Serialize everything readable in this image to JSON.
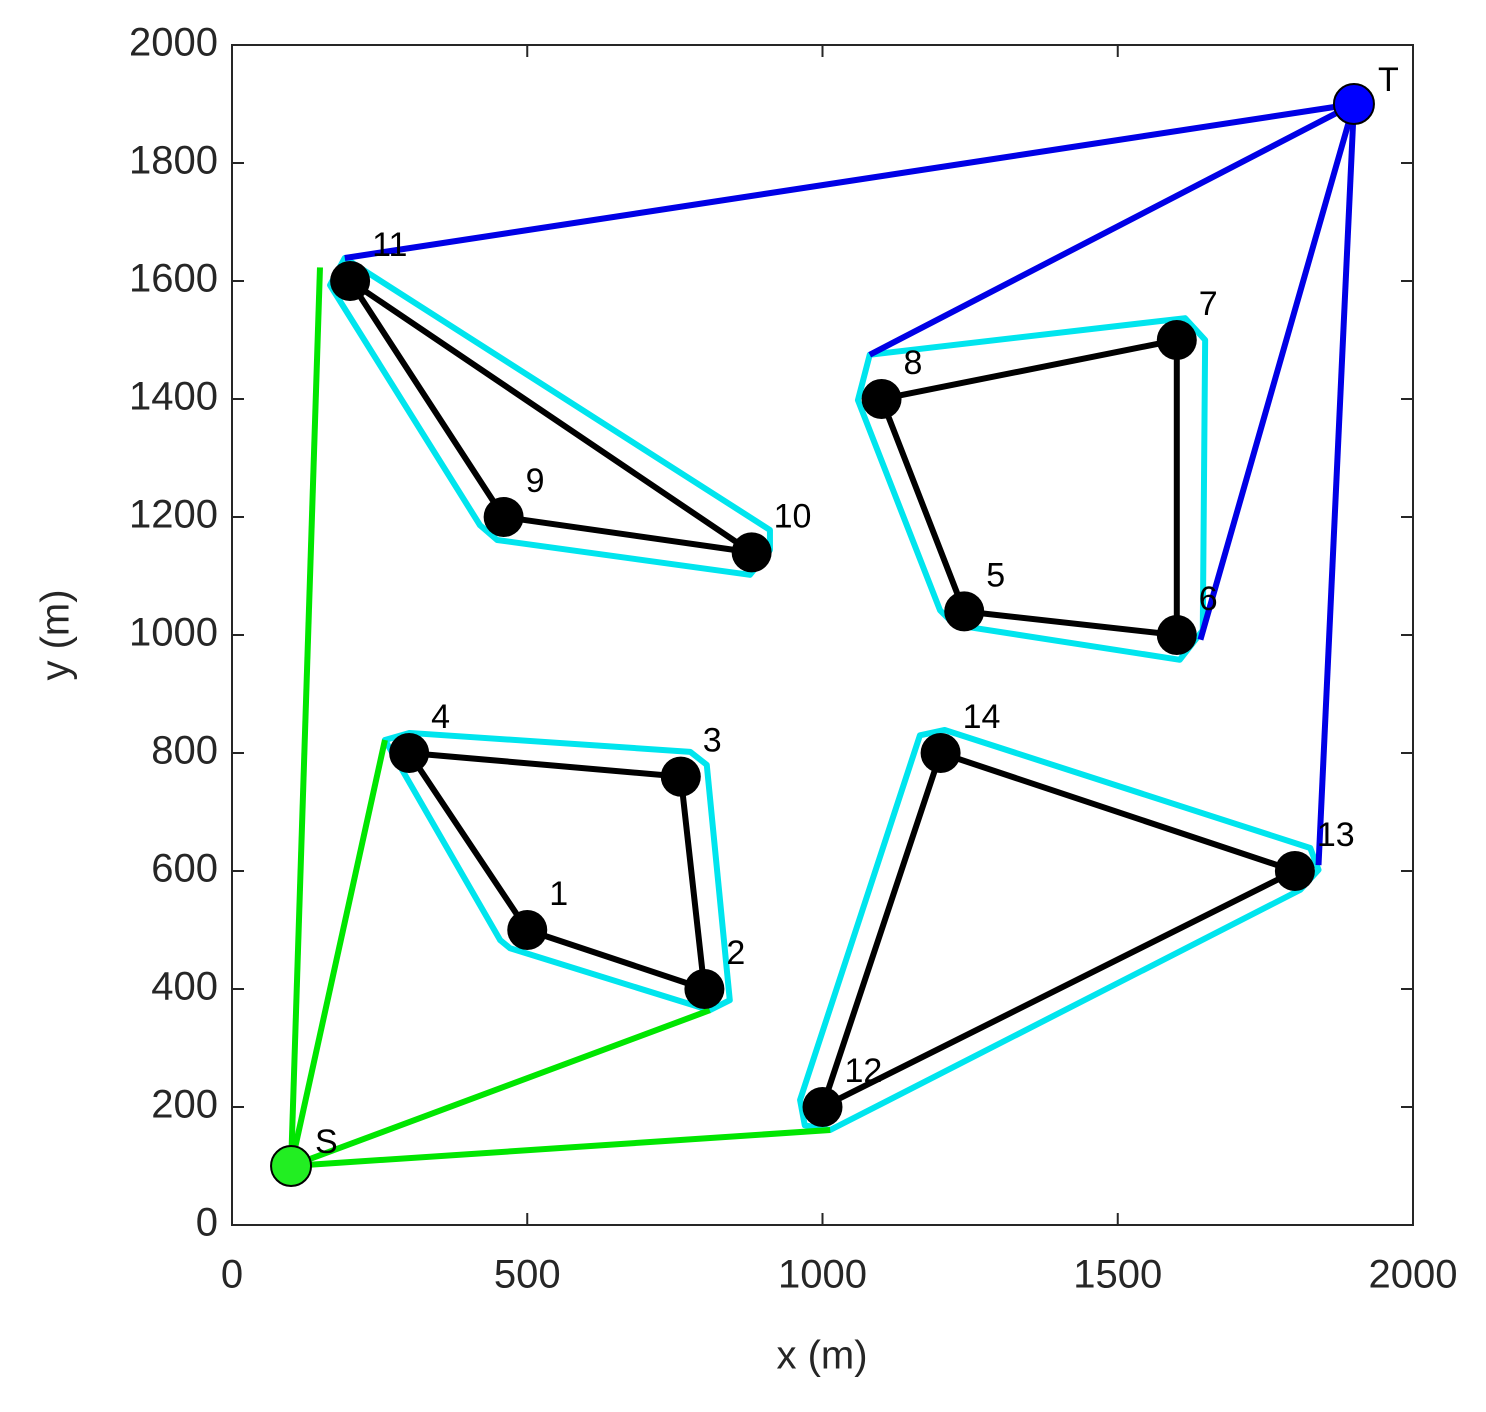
{
  "chart_data": {
    "type": "network",
    "x_label": "x (m)",
    "y_label": "y (m)",
    "xlim": [
      0,
      2000
    ],
    "ylim": [
      0,
      2000
    ],
    "xticks": [
      0,
      500,
      1000,
      1500,
      2000
    ],
    "yticks": [
      0,
      200,
      400,
      600,
      800,
      1000,
      1200,
      1400,
      1600,
      1800,
      2000
    ],
    "lines": [
      {
        "color": "#00e5ee",
        "closed": true,
        "x": [
          259,
          301,
          776,
          804,
          843,
          809,
          471,
          454
        ],
        "y": [
          822,
          834,
          802,
          780,
          381,
          364,
          469,
          483
        ]
      },
      {
        "color": "#00e5ee",
        "closed": true,
        "x": [
          1080,
          1614,
          1648,
          1644,
          1605,
          1224,
          1199,
          1060
        ],
        "y": [
          1475,
          1537,
          1500,
          1008,
          958,
          1017,
          1042,
          1398
        ]
      },
      {
        "color": "#00e5ee",
        "closed": true,
        "x": [
          191,
          911,
          911,
          877,
          449,
          420,
          166
        ],
        "y": [
          1639,
          1178,
          1144,
          1102,
          1161,
          1186,
          1593
        ]
      },
      {
        "color": "#00e5ee",
        "closed": true,
        "x": [
          1165,
          1207,
          1826,
          1840,
          1809,
          1013,
          970,
          962
        ],
        "y": [
          830,
          839,
          639,
          602,
          568,
          161,
          169,
          212
        ]
      },
      {
        "color": "#000000",
        "closed": true,
        "x": [
          300,
          760,
          800,
          500
        ],
        "y": [
          800,
          760,
          400,
          500
        ]
      },
      {
        "color": "#000000",
        "closed": true,
        "x": [
          1100,
          1600,
          1600,
          1240
        ],
        "y": [
          1400,
          1500,
          1000,
          1040
        ]
      },
      {
        "color": "#000000",
        "closed": true,
        "x": [
          200,
          880,
          460
        ],
        "y": [
          1600,
          1140,
          1200
        ]
      },
      {
        "color": "#000000",
        "closed": true,
        "x": [
          1200,
          1800,
          1000
        ],
        "y": [
          800,
          600,
          200
        ]
      },
      {
        "color": "#00e600",
        "closed": false,
        "x": [
          100,
          149
        ],
        "y": [
          100,
          1623
        ]
      },
      {
        "color": "#00e600",
        "closed": false,
        "x": [
          100,
          259
        ],
        "y": [
          100,
          822
        ]
      },
      {
        "color": "#00e600",
        "closed": false,
        "x": [
          100,
          809
        ],
        "y": [
          100,
          364
        ]
      },
      {
        "color": "#00e600",
        "closed": false,
        "x": [
          100,
          1013
        ],
        "y": [
          100,
          161
        ]
      },
      {
        "color": "#0000e6",
        "closed": false,
        "x": [
          1900,
          191
        ],
        "y": [
          1900,
          1639
        ]
      },
      {
        "color": "#0000e6",
        "closed": false,
        "x": [
          1900,
          1080
        ],
        "y": [
          1900,
          1475
        ]
      },
      {
        "color": "#0000e6",
        "closed": false,
        "x": [
          1900,
          1640
        ],
        "y": [
          1900,
          992
        ]
      },
      {
        "color": "#0000e6",
        "closed": false,
        "x": [
          1900,
          1840
        ],
        "y": [
          1900,
          610
        ]
      }
    ],
    "nodes": {
      "color": "#000000",
      "labels": [
        "1",
        "2",
        "3",
        "4",
        "5",
        "6",
        "7",
        "8",
        "9",
        "10",
        "11",
        "12",
        "13",
        "14"
      ],
      "x": [
        500,
        800,
        760,
        300,
        1240,
        1600,
        1600,
        1100,
        460,
        880,
        200,
        1000,
        1800,
        1200
      ],
      "y": [
        500,
        400,
        760,
        800,
        1040,
        1000,
        1500,
        1400,
        1200,
        1140,
        1600,
        200,
        600,
        800
      ]
    },
    "terminals": [
      {
        "label": "S",
        "color": "#22ee22",
        "x": 100,
        "y": 100
      },
      {
        "label": "T",
        "color": "#0000ff",
        "x": 1900,
        "y": 1900
      }
    ]
  }
}
